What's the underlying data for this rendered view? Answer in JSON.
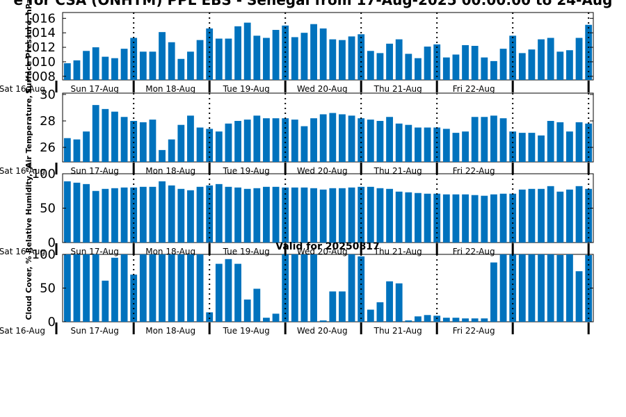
{
  "chart_data": {
    "title": "e for CSA (ONHTM) PPL EBS  - Senegal from 17-Aug-2025 00:00:00 to 24-Aug",
    "subtitle": "Valid for 20250817",
    "type": "bar",
    "color": "#0072bd",
    "day_labels": [
      "Sat 16-Aug",
      "Sun 17-Aug",
      "Mon 18-Aug",
      "Tue 19-Aug",
      "Wed 20-Aug",
      "Thu 21-Aug",
      "Fri 22-Aug"
    ],
    "grid": false,
    "panels": [
      {
        "ylabel": "Surface Pressure, hPa",
        "ylim": [
          1007.5,
          1016.8
        ],
        "yticks": [
          1008,
          1010,
          1012,
          1014,
          1016
        ],
        "values": [
          1009.8,
          1010.2,
          1011.5,
          1012,
          1010.7,
          1010.5,
          1011.8,
          1013.3,
          1011.4,
          1011.4,
          1014.1,
          1012.7,
          1010.4,
          1011.4,
          1013,
          1014.6,
          1013.2,
          1013.2,
          1014.9,
          1015.4,
          1013.6,
          1013.3,
          1014.4,
          1015,
          1013.4,
          1014,
          1015.2,
          1014.6,
          1013.1,
          1013,
          1013.5,
          1013.8,
          1011.5,
          1011.2,
          1012.5,
          1013.1,
          1011.1,
          1010.5,
          1012.1,
          1012.4,
          1010.6,
          1011,
          1012.3,
          1012.2,
          1010.6,
          1010.1,
          1011.8,
          1013.6,
          1011.2,
          1011.7,
          1013.1,
          1013.3,
          1011.4,
          1011.6,
          1013.3,
          1015.1
        ]
      },
      {
        "ylabel": "Air Temperature, C",
        "ylim": [
          24.9,
          30.1
        ],
        "yticks": [
          26,
          28,
          30
        ],
        "values": [
          26.7,
          26.6,
          27.2,
          29.2,
          28.9,
          28.7,
          28.3,
          28,
          27.9,
          28.1,
          25.8,
          26.6,
          27.7,
          28.4,
          27.5,
          27.4,
          27.2,
          27.8,
          28,
          28.1,
          28.4,
          28.2,
          28.2,
          28.2,
          28.1,
          27.6,
          28.2,
          28.5,
          28.6,
          28.5,
          28.4,
          28.2,
          28.1,
          28,
          28.3,
          27.8,
          27.7,
          27.5,
          27.5,
          27.5,
          27.4,
          27.1,
          27.2,
          28.3,
          28.3,
          28.4,
          28.2,
          27.2,
          27.1,
          27.1,
          26.9,
          28,
          27.9,
          27.2,
          27.9,
          27.8
        ]
      },
      {
        "ylabel": "Relative Humidity, %",
        "ylim": [
          0,
          100
        ],
        "yticks": [
          0,
          50,
          100
        ],
        "values": [
          89,
          87,
          85,
          75,
          78,
          79,
          80,
          80,
          81,
          81,
          89,
          83,
          78,
          76,
          81,
          83,
          85,
          81,
          80,
          78,
          79,
          81,
          81,
          80,
          80,
          80,
          79,
          77,
          79,
          79,
          80,
          81,
          81,
          79,
          78,
          74,
          73,
          72,
          71,
          71,
          70,
          70,
          70,
          69,
          68,
          70,
          71,
          71,
          77,
          78,
          78,
          82,
          74,
          77,
          82,
          78
        ]
      },
      {
        "ylabel": "Cloud Cover, %",
        "ylim": [
          0,
          100
        ],
        "yticks": [
          0,
          50,
          100
        ],
        "values": [
          100,
          100,
          100,
          100,
          61,
          95,
          100,
          70,
          100,
          100,
          100,
          100,
          100,
          100,
          100,
          14,
          86,
          93,
          86,
          33,
          49,
          6,
          12,
          100,
          100,
          100,
          100,
          2,
          45,
          45,
          100,
          97,
          18,
          29,
          60,
          57,
          2,
          8,
          10,
          9,
          6,
          6,
          5,
          5,
          5,
          88,
          100,
          100,
          100,
          100,
          100,
          100,
          99,
          100,
          75,
          99
        ]
      }
    ]
  }
}
